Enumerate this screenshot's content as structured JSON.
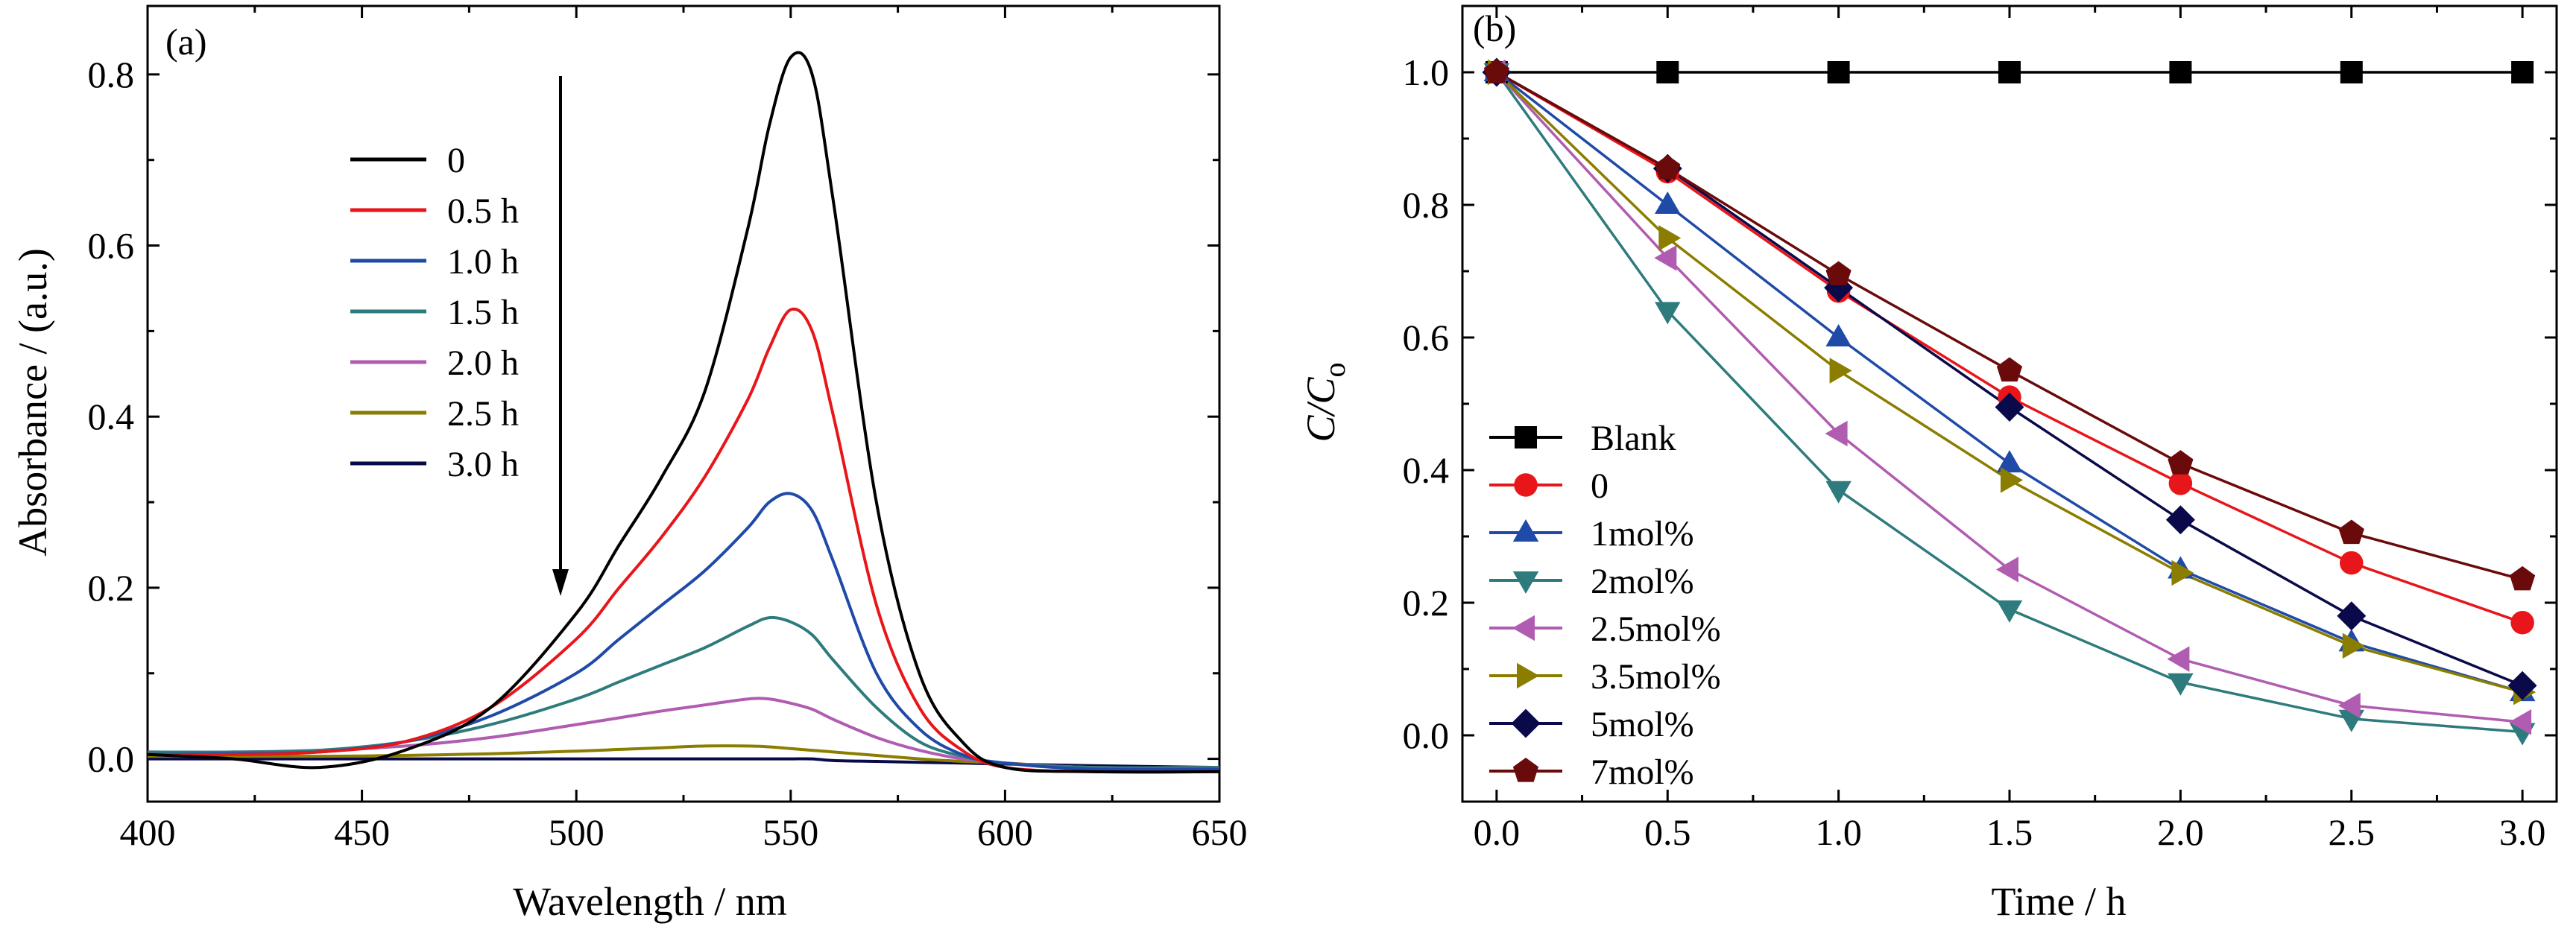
{
  "chart_data": [
    {
      "type": "line",
      "panel_label": "(a)",
      "xlabel": "Wavelength / nm",
      "ylabel": "Absorbance / (a.u.)",
      "xlim": [
        400,
        650
      ],
      "ylim": [
        -0.05,
        0.88
      ],
      "xticks": [
        400,
        450,
        500,
        550,
        600,
        650
      ],
      "yticks": [
        0.0,
        0.2,
        0.4,
        0.6,
        0.8
      ],
      "xtick_labels": [
        "400",
        "450",
        "500",
        "550",
        "600",
        "650"
      ],
      "ytick_labels": [
        "0.0",
        "0.2",
        "0.4",
        "0.6",
        "0.8"
      ],
      "legend_position": "upper-left",
      "annotation": "arrow pointing down indicating decreasing absorbance over time",
      "x": [
        400,
        420,
        440,
        460,
        480,
        500,
        510,
        520,
        530,
        540,
        545,
        550,
        555,
        560,
        570,
        580,
        590,
        600,
        620,
        650
      ],
      "series": [
        {
          "name": "0",
          "color": "#000000",
          "values": [
            0.005,
            0.0,
            -0.01,
            0.01,
            0.06,
            0.17,
            0.25,
            0.33,
            0.43,
            0.62,
            0.74,
            0.82,
            0.8,
            0.65,
            0.3,
            0.1,
            0.02,
            -0.01,
            -0.015,
            -0.015
          ]
        },
        {
          "name": "0.5 h",
          "color": "#e8161a",
          "values": [
            0.005,
            0.005,
            0.008,
            0.02,
            0.06,
            0.14,
            0.2,
            0.26,
            0.33,
            0.42,
            0.48,
            0.525,
            0.5,
            0.4,
            0.18,
            0.06,
            0.01,
            -0.01,
            -0.015,
            -0.015
          ]
        },
        {
          "name": "1.0 h",
          "color": "#1f4aa8",
          "values": [
            0.005,
            0.006,
            0.008,
            0.02,
            0.05,
            0.1,
            0.14,
            0.18,
            0.22,
            0.27,
            0.3,
            0.31,
            0.29,
            0.23,
            0.1,
            0.035,
            0.005,
            -0.005,
            -0.012,
            -0.012
          ]
        },
        {
          "name": "1.5 h",
          "color": "#2e7b7d",
          "values": [
            0.008,
            0.008,
            0.01,
            0.02,
            0.04,
            0.07,
            0.09,
            0.11,
            0.13,
            0.155,
            0.165,
            0.16,
            0.145,
            0.115,
            0.06,
            0.02,
            0.003,
            -0.005,
            -0.01,
            -0.01
          ]
        },
        {
          "name": "2.0 h",
          "color": "#b05cb0",
          "values": [
            0.008,
            0.008,
            0.01,
            0.015,
            0.025,
            0.04,
            0.048,
            0.056,
            0.063,
            0.07,
            0.07,
            0.065,
            0.058,
            0.046,
            0.025,
            0.01,
            0.0,
            -0.005,
            -0.01,
            -0.01
          ]
        },
        {
          "name": "2.5 h",
          "color": "#8a7d00",
          "values": [
            0.003,
            0.003,
            0.003,
            0.004,
            0.006,
            0.009,
            0.011,
            0.013,
            0.015,
            0.015,
            0.014,
            0.012,
            0.01,
            0.008,
            0.004,
            0.0,
            -0.003,
            -0.005,
            -0.01,
            -0.01
          ]
        },
        {
          "name": "3.0 h",
          "color": "#0a0a4a",
          "values": [
            0.0,
            0.0,
            0.0,
            0.0,
            0.0,
            0.0,
            0.0,
            0.0,
            0.0,
            0.0,
            0.0,
            0.0,
            0.0,
            -0.002,
            -0.003,
            -0.004,
            -0.005,
            -0.006,
            -0.008,
            -0.01
          ]
        }
      ]
    },
    {
      "type": "line",
      "panel_label": "(b)",
      "xlabel": "Time / h",
      "ylabel": "C/Co",
      "ylabel_main": "C/C",
      "ylabel_sub": "o",
      "xlim": [
        -0.1,
        3.1
      ],
      "ylim": [
        -0.1,
        1.1
      ],
      "xticks": [
        0.0,
        0.5,
        1.0,
        1.5,
        2.0,
        2.5,
        3.0
      ],
      "yticks": [
        0.0,
        0.2,
        0.4,
        0.6,
        0.8,
        1.0
      ],
      "xtick_labels": [
        "0.0",
        "0.5",
        "1.0",
        "1.5",
        "2.0",
        "2.5",
        "3.0"
      ],
      "ytick_labels": [
        "0.0",
        "0.2",
        "0.4",
        "0.6",
        "0.8",
        "1.0"
      ],
      "legend_position": "lower-left",
      "x": [
        0.0,
        0.5,
        1.0,
        1.5,
        2.0,
        2.5,
        3.0
      ],
      "series": [
        {
          "name": "Blank",
          "color": "#000000",
          "marker": "square",
          "values": [
            1.0,
            1.0,
            1.0,
            1.0,
            1.0,
            1.0,
            1.0
          ]
        },
        {
          "name": "0",
          "color": "#e8161a",
          "marker": "circle",
          "values": [
            1.0,
            0.85,
            0.67,
            0.51,
            0.38,
            0.26,
            0.17
          ]
        },
        {
          "name": "1mol%",
          "color": "#1f4aa8",
          "marker": "triangle-up",
          "values": [
            1.0,
            0.8,
            0.6,
            0.41,
            0.25,
            0.14,
            0.065
          ]
        },
        {
          "name": "2mol%",
          "color": "#2e7b7d",
          "marker": "triangle-down",
          "values": [
            1.0,
            0.64,
            0.37,
            0.19,
            0.08,
            0.025,
            0.005
          ]
        },
        {
          "name": "2.5mol%",
          "color": "#b05cb0",
          "marker": "triangle-left",
          "values": [
            1.0,
            0.72,
            0.455,
            0.25,
            0.115,
            0.045,
            0.02
          ]
        },
        {
          "name": "3.5mol%",
          "color": "#8a7d00",
          "marker": "triangle-right",
          "values": [
            1.0,
            0.75,
            0.55,
            0.385,
            0.245,
            0.135,
            0.065
          ]
        },
        {
          "name": "5mol%",
          "color": "#0a0a4a",
          "marker": "diamond",
          "values": [
            1.0,
            0.855,
            0.675,
            0.495,
            0.325,
            0.18,
            0.075
          ]
        },
        {
          "name": "7mol%",
          "color": "#6b0a0a",
          "marker": "pentagon",
          "values": [
            1.0,
            0.855,
            0.695,
            0.55,
            0.41,
            0.305,
            0.235
          ]
        }
      ]
    }
  ]
}
